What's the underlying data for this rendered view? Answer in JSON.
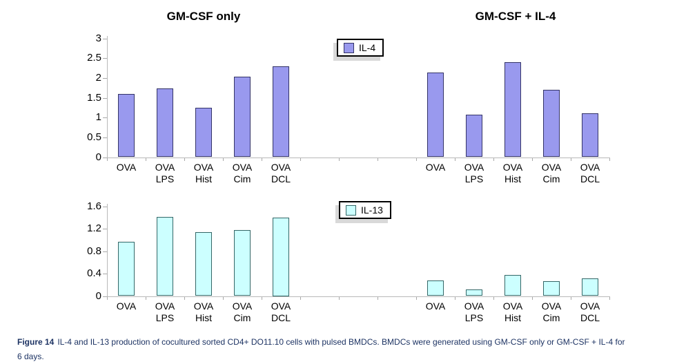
{
  "figure": {
    "caption_label": "Figure 14",
    "caption_line1": "IL-4 and IL-13 production of cocultured sorted CD4+ DO11.10 cells with pulsed BMDCs. BMDCs were generated using GM-CSF only or GM-CSF + IL-4 for",
    "caption_line2": "6 days.",
    "caption_color": "#1d3363",
    "background": "#ffffff"
  },
  "chart_data": [
    {
      "type": "bar",
      "panel": "top",
      "legend": "IL-4",
      "legend_position": "top-center",
      "column_titles": [
        "GM-CSF only",
        "GM-CSF + IL-4"
      ],
      "categories": [
        "OVA",
        "OVA LPS",
        "OVA Hist",
        "OVA Cim",
        "OVA DCL"
      ],
      "series": [
        {
          "name": "GM-CSF only",
          "values": [
            1.6,
            1.73,
            1.25,
            2.03,
            2.3
          ]
        },
        {
          "name": "GM-CSF + IL-4",
          "values": [
            2.13,
            1.08,
            2.4,
            1.7,
            1.1
          ]
        }
      ],
      "ylim": [
        0,
        3
      ],
      "yticks": [
        0,
        0.5,
        1,
        1.5,
        2,
        2.5,
        3
      ],
      "xlabel": "",
      "ylabel": "",
      "grid": false,
      "bar_fill": "#9999EE",
      "bar_border": "#333366",
      "axis_color": "#b8b8b8"
    },
    {
      "type": "bar",
      "panel": "bottom",
      "legend": "IL-13",
      "legend_position": "top-center",
      "column_titles": [
        "GM-CSF only",
        "GM-CSF + IL-4"
      ],
      "categories": [
        "OVA",
        "OVA LPS",
        "OVA Hist",
        "OVA Cim",
        "OVA DCL"
      ],
      "series": [
        {
          "name": "GM-CSF only",
          "values": [
            0.97,
            1.42,
            1.14,
            1.18,
            1.4
          ]
        },
        {
          "name": "GM-CSF + IL-4",
          "values": [
            0.28,
            0.12,
            0.38,
            0.27,
            0.32
          ]
        }
      ],
      "ylim": [
        0,
        1.6
      ],
      "yticks": [
        0,
        0.4,
        0.8,
        1.2,
        1.6
      ],
      "xlabel": "",
      "ylabel": "",
      "grid": false,
      "bar_fill": "#CCFFFF",
      "bar_border": "#336666",
      "axis_color": "#b8b8b8"
    }
  ]
}
